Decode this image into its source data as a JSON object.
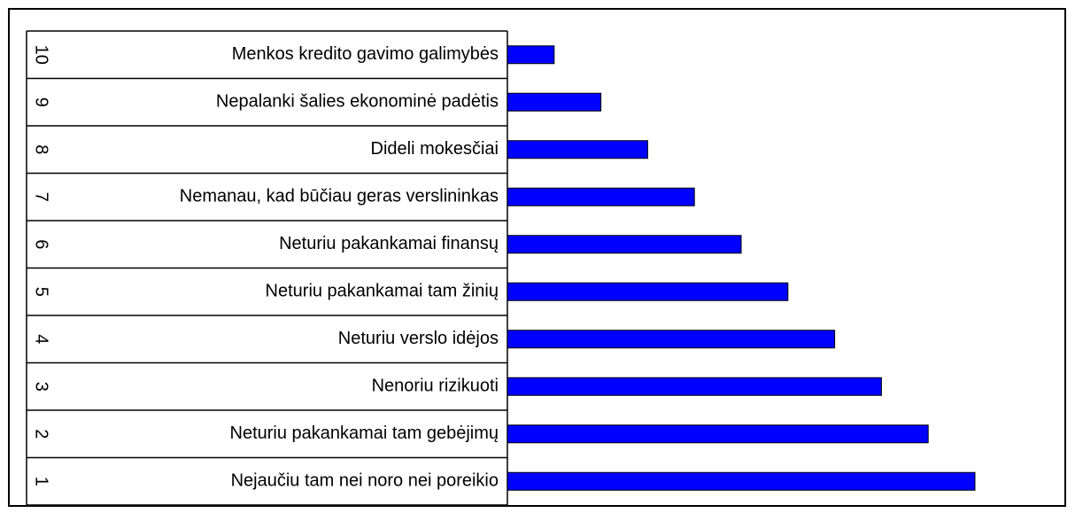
{
  "chart_data": {
    "type": "bar",
    "orientation": "horizontal",
    "ranks": [
      1,
      2,
      3,
      4,
      5,
      6,
      7,
      8,
      9,
      10
    ],
    "categories": [
      "Nejaučiu tam nei noro nei poreikio",
      "Neturiu pakankamai tam gebėjimų",
      "Nenoriu rizikuoti",
      "Neturiu verslo idėjos",
      "Neturiu pakankamai tam žinių",
      "Neturiu pakankamai finansų",
      "Nemanau, kad būčiau geras verslininkas",
      "Dideli mokesčiai",
      "Nepalanki šalies ekonominė padėtis",
      "Menkos kredito gavimo galimybės"
    ],
    "values": [
      10,
      9,
      8,
      7,
      6,
      5,
      4,
      3,
      2,
      1
    ],
    "color": "#0000ff"
  }
}
